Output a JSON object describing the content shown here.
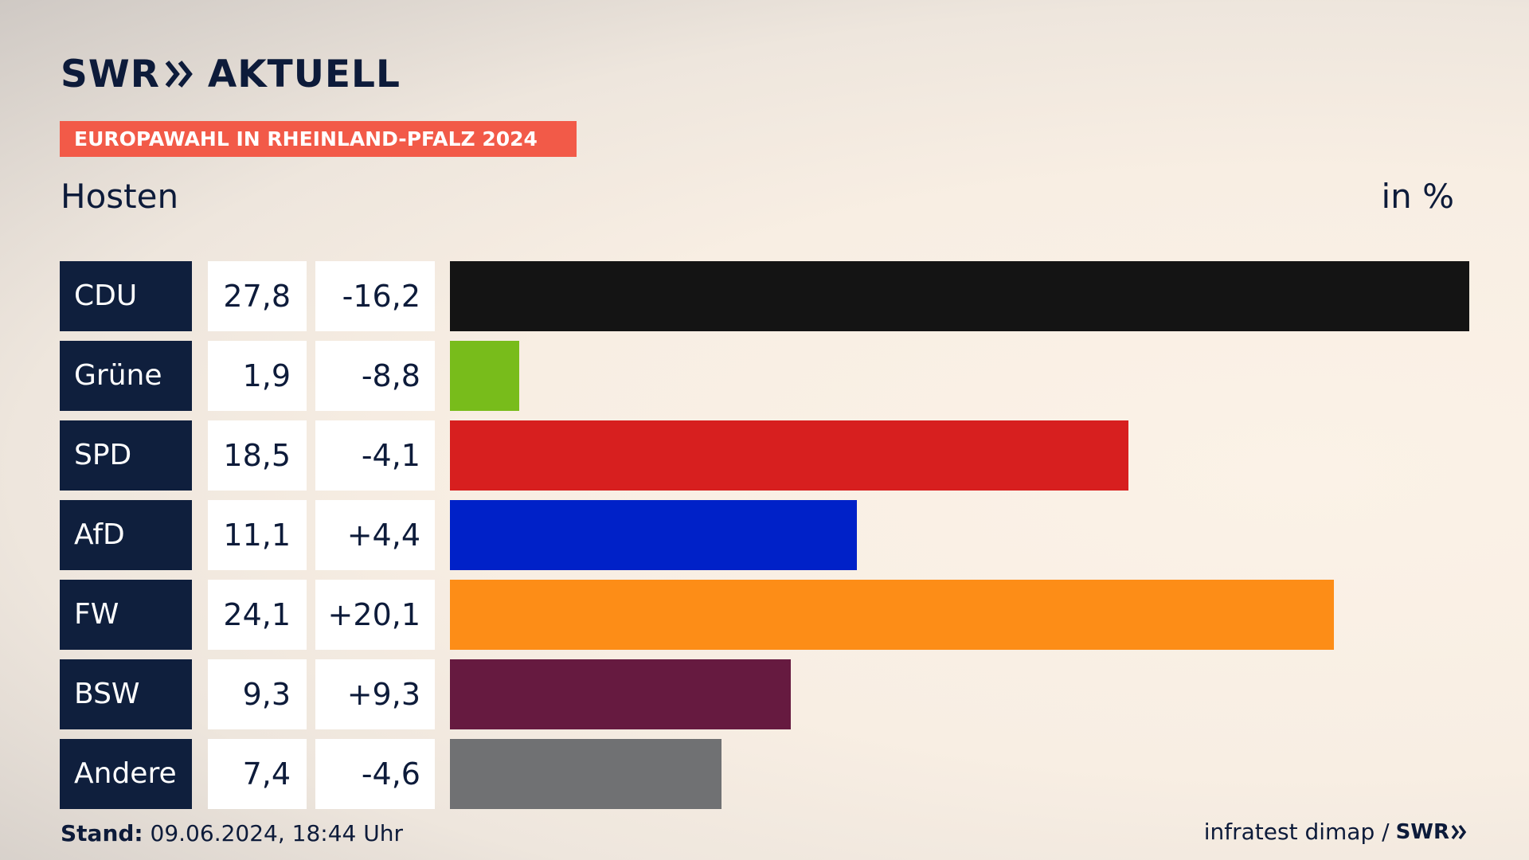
{
  "brand": {
    "logo_left": "SWR",
    "logo_right": "AKTUELL"
  },
  "banner": {
    "label": "EUROPAWAHL IN RHEINLAND-PFALZ 2024",
    "color": "#f25a48"
  },
  "header": {
    "region": "Hosten",
    "unit": "in %"
  },
  "chart_data": {
    "type": "bar",
    "orientation": "horizontal",
    "title": "EUROPAWAHL IN RHEINLAND-PFALZ 2024",
    "subtitle": "Hosten",
    "unit": "in %",
    "categories": [
      "CDU",
      "Grüne",
      "SPD",
      "AfD",
      "FW",
      "BSW",
      "Andere"
    ],
    "values": [
      27.8,
      1.9,
      18.5,
      11.1,
      24.1,
      9.3,
      7.4
    ],
    "value_labels": [
      "27,8",
      "1,9",
      "18,5",
      "11,1",
      "24,1",
      "9,3",
      "7,4"
    ],
    "changes": [
      "-16,2",
      "-8,8",
      "-4,1",
      "+4,4",
      "+20,1",
      "+9,3",
      "-4,6"
    ],
    "colors": [
      "#141414",
      "#78bc1b",
      "#d71f1f",
      "#0021c8",
      "#fd8d17",
      "#661a40",
      "#707173"
    ],
    "xlim": [
      0,
      27.8
    ]
  },
  "footer": {
    "stand_label": "Stand:",
    "stand_value": "09.06.2024, 18:44 Uhr",
    "source": "infratest dimap /",
    "source_logo": "SWR"
  }
}
